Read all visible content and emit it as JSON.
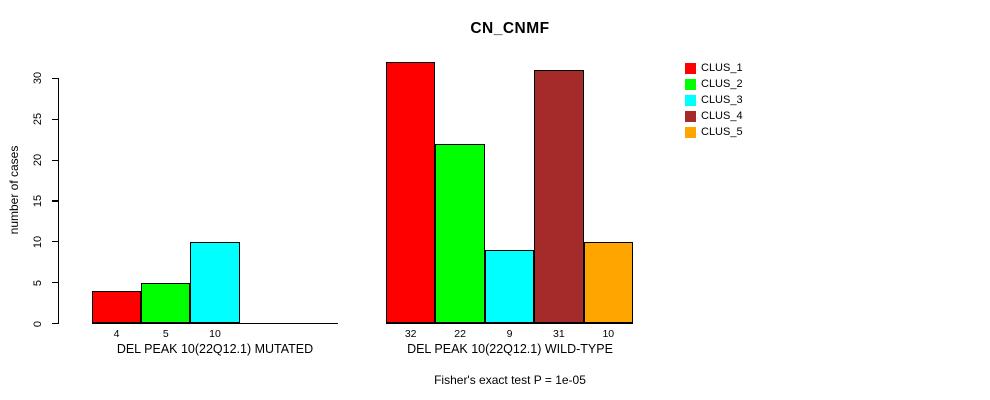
{
  "chart_data": {
    "type": "bar",
    "title": "CN_CNMF",
    "ylabel": "number of cases",
    "ylim": [
      0,
      32
    ],
    "yticks": [
      0,
      5,
      10,
      15,
      20,
      25,
      30
    ],
    "grid": false,
    "legend_position": "right",
    "series": [
      {
        "name": "CLUS_1",
        "color": "#FF0000"
      },
      {
        "name": "CLUS_2",
        "color": "#00FF00"
      },
      {
        "name": "CLUS_3",
        "color": "#00FFFF"
      },
      {
        "name": "CLUS_4",
        "color": "#A52A2A"
      },
      {
        "name": "CLUS_5",
        "color": "#FFA500"
      }
    ],
    "groups": [
      {
        "key": "mutated",
        "label": "DEL PEAK 10(22Q12.1) MUTATED",
        "values": [
          4,
          5,
          10,
          0,
          0
        ]
      },
      {
        "key": "wild-type",
        "label": "DEL PEAK 10(22Q12.1) WILD-TYPE",
        "values": [
          32,
          22,
          9,
          31,
          10
        ]
      }
    ],
    "footnote": "Fisher's exact test P = 1e-05"
  }
}
